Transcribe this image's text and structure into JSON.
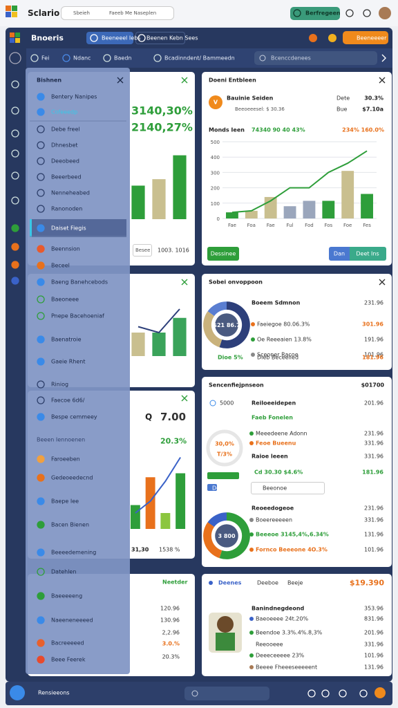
{
  "topbar": {
    "brand": "Sclario",
    "tabs": [
      "Sbeieh",
      "Faeeb Me Naseplen"
    ],
    "button": "Berfregeen"
  },
  "header": {
    "title": "Bnoeris",
    "tabs": [
      "Beeneeel Iebs",
      "Beenen Kebn Sees"
    ],
    "button": "Beeneeeer"
  },
  "toolbar": {
    "items": [
      "Fei",
      "Ndanc",
      "Baedn",
      "Bcadinndent/ Bammeedn"
    ],
    "search": "Bcenccdenees"
  },
  "sidebar": {
    "title": "Bishnen",
    "section": "Beeen Iennoenen",
    "items": [
      "Bentery Nanipes",
      "Cofeeedp",
      "Debe freel",
      "Dhnesbet",
      "Deeobeed",
      "Beeerbeed",
      "Nenneheabed",
      "Ranonoden",
      "Daiset Fiegis",
      "Beennsion",
      "Beceel",
      "Baeng Banehcebods",
      "Baeoneee",
      "Pnepe Bacehoeniaf",
      "Baenatroie",
      "Gaeie Rhent",
      "Riniog",
      "Faecoe 6d6/",
      "Bespe cemmeey",
      "Faroeeben",
      "Gedeoeedecnd",
      "Baepe Iee",
      "Bacen Bienen",
      "Beeeedemening",
      "Datehlen",
      "Baeeeeeng",
      "Naeeneneeeed",
      "Bacreeeeed",
      "Beee Feerek"
    ]
  },
  "cards": [
    {
      "texts": [
        "3140,30%",
        "2140,27%",
        "Besee",
        "1003. 1016"
      ],
      "chart": {
        "type": "bar",
        "values": [
          52,
          62,
          99
        ],
        "colors": [
          "#2e9e3a",
          "#c9bf8f",
          "#2e9e3a"
        ],
        "ylim": [
          0,
          120
        ]
      }
    },
    {
      "texts": [],
      "chart": {
        "type": "bar",
        "values": [
          40,
          40,
          65
        ],
        "colors": [
          "#c9bf8f",
          "#3aa35a",
          "#3aa35a"
        ],
        "line": [
          50,
          40,
          80
        ],
        "line_color": "#2d3f7a",
        "ylim": [
          0,
          100
        ]
      }
    },
    {
      "texts": [
        "Q",
        "7.00",
        "20.3%",
        "31,30",
        "1538 %"
      ],
      "chart": {
        "type": "bar",
        "values": [
          30,
          65,
          20,
          70
        ],
        "colors": [
          "#2e9e3a",
          "#e8711c",
          "#8cc63f",
          "#2e9e3a"
        ],
        "line": [
          20,
          35,
          60,
          90
        ],
        "line_color": "#3a62c8",
        "ylim": [
          0,
          100
        ]
      }
    },
    {
      "texts": [
        "Neetder",
        "120.96",
        "130.96",
        "2,2.96",
        "3.0.%",
        "20.3%"
      ]
    },
    {
      "texts": [
        "Doeni Entbleen",
        "V",
        "Bauinie Seiden",
        "Beeoeeesel: $ 30.36",
        "Dete",
        "Bue",
        "30.3%",
        "$7.10a",
        "Monds Ieen",
        "74340 90 40 43%",
        "234% 160.0%",
        "Dessinee",
        "Dan",
        "Deet Ins"
      ],
      "chart": {
        "type": "bar",
        "categories": [
          "Fae",
          "Foa",
          "Fae",
          "Ful",
          "Fod",
          "Fos",
          "Foe",
          "Fes"
        ],
        "values": [
          40,
          50,
          140,
          80,
          115,
          115,
          310,
          160
        ],
        "colors": [
          "#2e9e3a",
          "#c9bf8f",
          "#c9bf8f",
          "#9aa6bc",
          "#9aa6bc",
          "#2e9e3a",
          "#c9bf8f",
          "#2e9e3a"
        ],
        "line": [
          40,
          50,
          115,
          200,
          200,
          300,
          360,
          440
        ],
        "line_color": "#2e9e3a",
        "ylim": [
          0,
          500
        ],
        "yticks": [
          0,
          100,
          200,
          300,
          400,
          500
        ],
        "grid": true
      }
    },
    {
      "texts": [
        "Sobei onvoppoon",
        "Boeem Sdmnon",
        "231.96",
        "Faeiegoe 80.06.3%",
        "301.96",
        "Oe Reeeaien 13.8%",
        "191.96",
        "Sceoner Racoe",
        "101.96",
        "Dioe 5%",
        "Dieb Beceelled",
        "181.96"
      ],
      "chart": {
        "type": "donut",
        "values": [
          55,
          30,
          15
        ],
        "colors": [
          "#2d3f7a",
          "#c9b27c",
          "#5a7ed1"
        ],
        "center": "$21 86.7"
      }
    },
    {
      "texts": [
        "Sencenfiejpnseon",
        "$01700",
        "5000",
        "Reiloeeidepen",
        "201.96",
        "Faeb Fonelen",
        "Meeedeene Adonn",
        "231.96",
        "Feoe Bueenu",
        "331.96",
        "Raioe leeen",
        "331.96",
        "Cd 30.30 $4.6%",
        "181.96",
        "Beeonoe",
        "Dee",
        "Reoeedogeoe",
        "231.96",
        "Boeereeeeen",
        "331.96",
        "Beeeoe 3145,4%,6.34%",
        "131.96",
        "Fornco Beeeone 4O.3%",
        "101.96",
        "30,0%",
        "T/3%"
      ],
      "chart": {
        "type": "donut",
        "values": [
          55,
          30,
          15
        ],
        "colors": [
          "#2e9e3a",
          "#e8711c",
          "#3a62c8"
        ],
        "center": "3 800"
      }
    },
    {
      "texts": [
        "Deenes",
        "Deeboe",
        "Beeje",
        "$19.390",
        "Banindnegdeond",
        "353.96",
        "Baeoeeee 24t.20%",
        "831.96",
        "Beendoe 3.3%.4%.8,3%",
        "201.96",
        "Reeooeee",
        "331.96",
        "Deeeceeeee 23%",
        "101.96",
        "Beeee Fheeeseeeeent",
        "131.96"
      ]
    }
  ],
  "footer": {
    "title": "Rensieeons"
  }
}
